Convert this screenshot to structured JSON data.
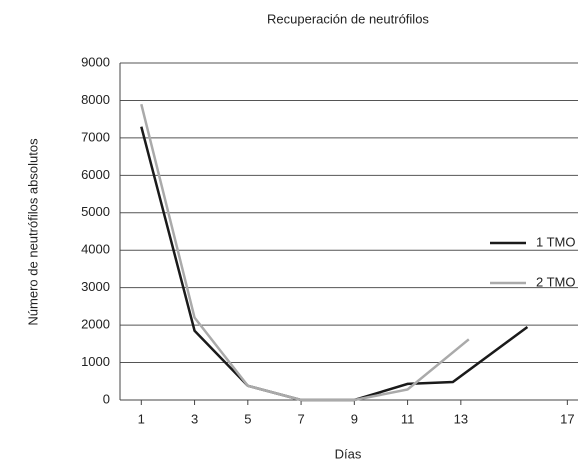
{
  "chart_data": {
    "type": "line",
    "title": "Recuperación de neutrófilos",
    "x_label": "Días",
    "y_label": "Número de neutrófilos absolutos",
    "series": [
      {
        "name": "1 TMO",
        "color": "#1a1a1a",
        "x": [
          1,
          3,
          5,
          7,
          9,
          11,
          12.7,
          15.5
        ],
        "values": [
          7300,
          1850,
          380,
          0,
          0,
          430,
          480,
          1950
        ]
      },
      {
        "name": "2 TMO",
        "color": "#aaaaaa",
        "x": [
          1,
          3,
          5,
          7,
          9,
          11,
          13.3
        ],
        "values": [
          7900,
          2200,
          380,
          0,
          0,
          280,
          1620
        ]
      }
    ],
    "xlim": [
      0.2,
      17.4
    ],
    "xticks": [
      1,
      3,
      5,
      7,
      9,
      11,
      13,
      17
    ],
    "ylim": [
      0,
      9000
    ],
    "yticks": [
      0,
      1000,
      2000,
      3000,
      4000,
      5000,
      6000,
      7000,
      8000,
      9000
    ],
    "grid": true,
    "legend": "right"
  }
}
